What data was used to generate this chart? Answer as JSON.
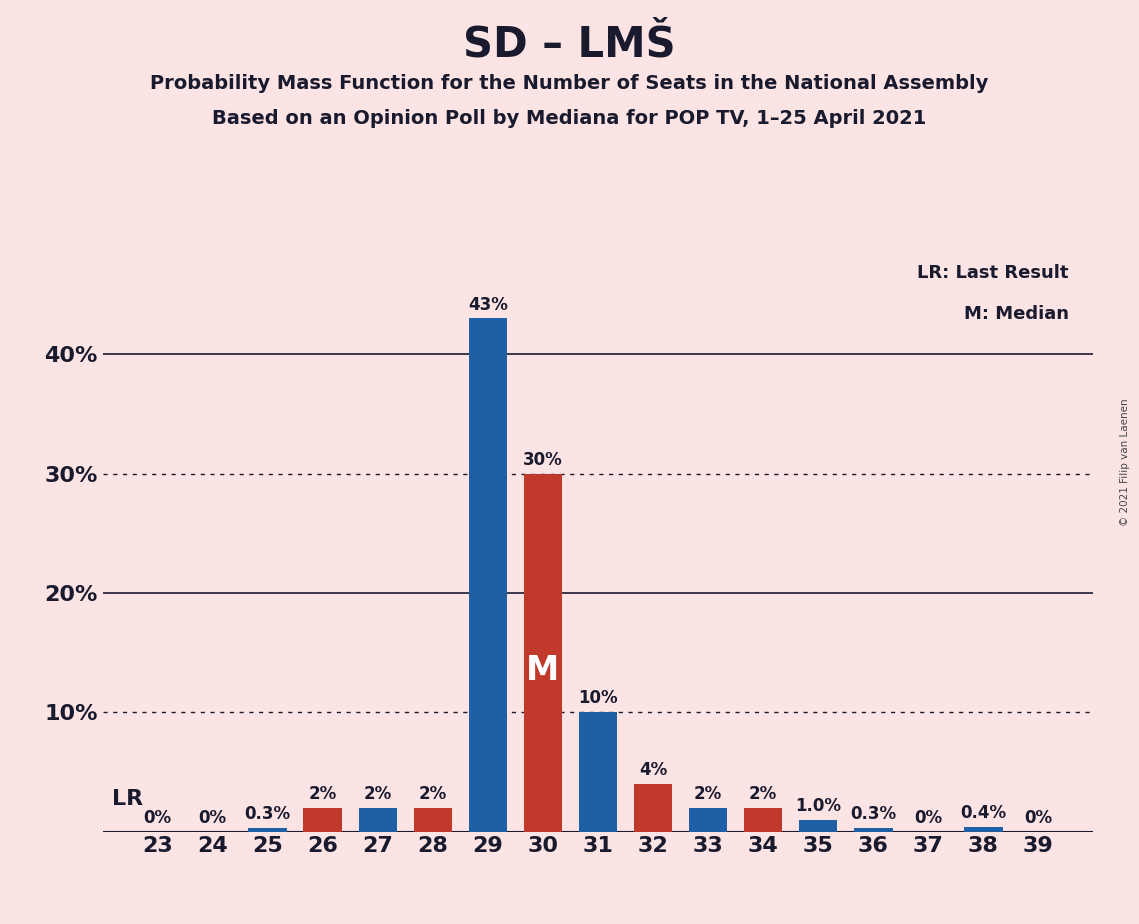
{
  "title": "SD – LMŠ",
  "subtitle1": "Probability Mass Function for the Number of Seats in the National Assembly",
  "subtitle2": "Based on an Opinion Poll by Mediana for POP TV, 1–25 April 2021",
  "copyright": "© 2021 Filip van Laenen",
  "seats": [
    23,
    24,
    25,
    26,
    27,
    28,
    29,
    30,
    31,
    32,
    33,
    34,
    35,
    36,
    37,
    38,
    39
  ],
  "blue_values": [
    0.0,
    0.0,
    0.003,
    0.0,
    0.02,
    0.0,
    0.43,
    0.0,
    0.1,
    0.0,
    0.02,
    0.0,
    0.01,
    0.003,
    0.0,
    0.004,
    0.0
  ],
  "red_values": [
    0.0,
    0.0,
    0.0,
    0.02,
    0.0,
    0.02,
    0.0,
    0.3,
    0.0,
    0.04,
    0.0,
    0.02,
    0.0,
    0.0,
    0.0,
    0.0,
    0.0
  ],
  "blue_labels": [
    "0%",
    "0%",
    "0.3%",
    "",
    "2%",
    "",
    "43%",
    "",
    "10%",
    "",
    "2%",
    "",
    "1.0%",
    "0.3%",
    "0%",
    "0.4%",
    "0%"
  ],
  "red_labels": [
    "",
    "",
    "",
    "2%",
    "",
    "2%",
    "",
    "30%",
    "",
    "4%",
    "",
    "2%",
    "",
    "",
    "",
    "",
    ""
  ],
  "blue_color": "#1f5fa6",
  "red_color": "#c0392b",
  "background_color": "#fce4e4",
  "text_color": "#1a1a2e",
  "grid_color": "#1a1a2e",
  "yticks": [
    0.0,
    0.1,
    0.2,
    0.3,
    0.4
  ],
  "ytick_labels": [
    "",
    "10%",
    "20%",
    "30%",
    "40%"
  ],
  "solid_lines": [
    0.2,
    0.4
  ],
  "dotted_lines": [
    0.1,
    0.3
  ],
  "median_seat": 30,
  "median_label": "M",
  "lr_label": "LR",
  "bar_width": 0.7
}
